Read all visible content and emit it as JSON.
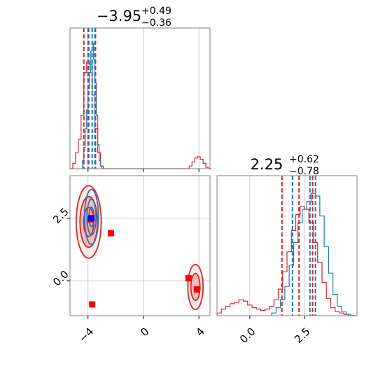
{
  "chart_data": {
    "type": "corner",
    "colors": {
      "red": "#d62728",
      "blue": "#1f77b4",
      "fill_red": "#f4a6a6",
      "fill_red_light": "#fbdcdc",
      "marker_red": "#ff0000",
      "marker_blue": "#0000ff"
    },
    "panels": {
      "hist_p1": {
        "title": {
          "value": "−3.95",
          "sup": "+0.49",
          "sub": "−0.36"
        },
        "xlim": [
          -5.3,
          4.8
        ],
        "xticks": [
          -4,
          0,
          4
        ],
        "ymax": 1.0,
        "grid": true,
        "red_quantiles": [
          -4.3,
          -3.95,
          -3.46
        ],
        "blue_quantiles": [
          -4.0,
          -3.7,
          -3.5
        ],
        "red_hist": {
          "x": [
            -5.3,
            -5.1,
            -4.9,
            -4.7,
            -4.5,
            -4.3,
            -4.1,
            -3.9,
            -3.7,
            -3.5,
            -3.3,
            -3.1,
            -2.9,
            -2.7,
            -2.5,
            3.1,
            3.3,
            3.5,
            3.7,
            3.9,
            4.1,
            4.3,
            4.5,
            4.7
          ],
          "y": [
            0.0,
            0.04,
            0.12,
            0.22,
            0.4,
            0.72,
            0.8,
            0.78,
            0.55,
            0.3,
            0.12,
            0.02,
            0.0,
            0.0,
            0.0,
            0.0,
            0.02,
            0.05,
            0.08,
            0.09,
            0.07,
            0.04,
            0.01,
            0.0
          ]
        },
        "blue_hist": {
          "x": [
            -4.5,
            -4.4,
            -4.3,
            -4.2,
            -4.1,
            -4.0,
            -3.9,
            -3.8,
            -3.7,
            -3.6,
            -3.5,
            -3.4,
            -3.3,
            -3.2,
            -3.1,
            -3.0
          ],
          "y": [
            0.0,
            0.06,
            0.16,
            0.3,
            0.44,
            0.6,
            0.72,
            0.88,
            0.94,
            0.82,
            0.64,
            0.4,
            0.18,
            0.06,
            0.02,
            0.0
          ]
        }
      },
      "hist_p2": {
        "title": {
          "value": "2.25",
          "sup": "+0.62",
          "sub": "−0.78"
        },
        "xlim": [
          -1.5,
          4.9
        ],
        "xticks": [
          0.0,
          2.5
        ],
        "xticklabels": [
          "0.0",
          "2.5"
        ],
        "ymax": 1.0,
        "grid": true,
        "red_quantiles": [
          1.47,
          2.25,
          2.87
        ],
        "blue_quantiles": [
          1.95,
          2.75,
          3.0
        ],
        "red_hist": {
          "x": [
            -1.5,
            -1.3,
            -1.1,
            -0.9,
            -0.7,
            -0.5,
            -0.3,
            -0.1,
            0.1,
            0.3,
            0.5,
            0.7,
            0.9,
            1.1,
            1.3,
            1.5,
            1.7,
            1.9,
            2.1,
            2.3,
            2.5,
            2.7,
            2.9,
            3.1,
            3.3,
            3.5,
            3.7,
            3.9,
            4.1,
            4.3,
            4.5,
            4.7
          ],
          "y": [
            0.02,
            0.05,
            0.07,
            0.09,
            0.1,
            0.12,
            0.11,
            0.08,
            0.06,
            0.05,
            0.04,
            0.05,
            0.07,
            0.12,
            0.2,
            0.33,
            0.48,
            0.64,
            0.76,
            0.82,
            0.8,
            0.7,
            0.55,
            0.4,
            0.25,
            0.13,
            0.06,
            0.03,
            0.02,
            0.01,
            0.0,
            0.0
          ]
        },
        "blue_hist": {
          "x": [
            1.0,
            1.2,
            1.4,
            1.6,
            1.8,
            2.0,
            2.2,
            2.4,
            2.6,
            2.8,
            3.0,
            3.2,
            3.4,
            3.6,
            3.8,
            4.0,
            4.2,
            4.4,
            4.6
          ],
          "y": [
            0.02,
            0.06,
            0.12,
            0.22,
            0.38,
            0.55,
            0.7,
            0.8,
            0.86,
            0.92,
            0.9,
            0.75,
            0.52,
            0.32,
            0.16,
            0.07,
            0.03,
            0.01,
            0.0
          ]
        }
      },
      "scatter_2d": {
        "xlim": [
          -5.3,
          4.8
        ],
        "ylim": [
          -1.4,
          4.2
        ],
        "xticks": [
          -4,
          0,
          4
        ],
        "yticks": [
          0.0,
          2.5
        ],
        "yticklabels": [
          "0.0",
          "2.5"
        ],
        "grid": true,
        "blobs": [
          {
            "color": "red",
            "cx": -3.95,
            "cy": 2.35,
            "rx": 0.9,
            "ry": 1.45,
            "levels": [
              1.0,
              0.7,
              0.4
            ]
          },
          {
            "color": "blue",
            "cx": -3.75,
            "cy": 2.55,
            "rx": 0.5,
            "ry": 1.1,
            "levels": [
              1.0,
              0.65,
              0.35
            ]
          },
          {
            "color": "red",
            "cx": 3.75,
            "cy": -0.25,
            "rx": 0.55,
            "ry": 0.9,
            "levels": [
              1.0,
              0.6
            ]
          }
        ],
        "red_markers": [
          [
            -3.8,
            2.45
          ],
          [
            -2.35,
            1.9
          ],
          [
            -3.7,
            -0.95
          ],
          [
            3.25,
            0.1
          ],
          [
            3.85,
            -0.35
          ]
        ],
        "blue_markers": [
          [
            -3.75,
            2.5
          ]
        ]
      }
    }
  }
}
